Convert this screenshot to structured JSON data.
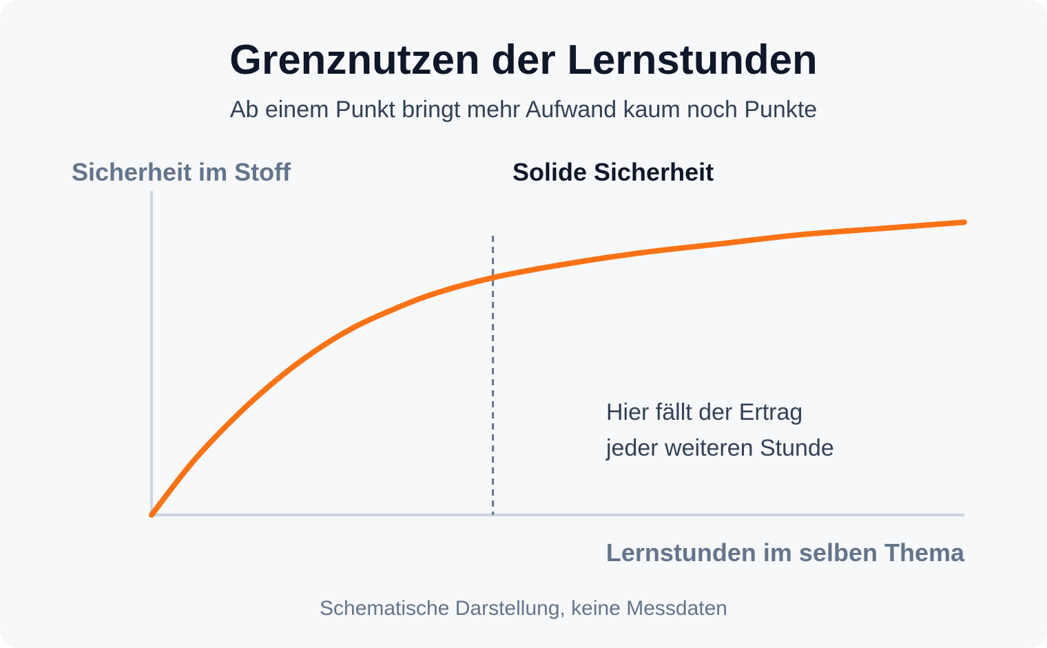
{
  "chart_data": {
    "type": "line",
    "title": "Grenznutzen der Lernstunden",
    "subtitle": "Ab einem Punkt bringt mehr Aufwand kaum noch Punkte",
    "xlabel": "Lernstunden im selben Thema",
    "ylabel": "Sicherheit im Stoff",
    "marker": {
      "label": "Solide Sicherheit",
      "x": 0.42,
      "style": "dashed-vertical"
    },
    "annotation": {
      "lines": [
        "Hier fällt der Ertrag",
        "jeder weiteren Stunde"
      ]
    },
    "footnote": "Schematische Darstellung, keine Messdaten",
    "xlim": [
      0,
      1
    ],
    "ylim": [
      0,
      1
    ],
    "ticks": false,
    "grid": false,
    "series": [
      {
        "x": [
          0,
          0.05,
          0.1,
          0.15,
          0.2,
          0.25,
          0.3,
          0.35,
          0.42,
          0.5,
          0.6,
          0.7,
          0.8,
          0.9,
          1.0
        ],
        "values": [
          0,
          0.17,
          0.31,
          0.43,
          0.53,
          0.61,
          0.67,
          0.72,
          0.77,
          0.81,
          0.85,
          0.88,
          0.91,
          0.93,
          0.95
        ]
      }
    ],
    "colors": {
      "line": "#f97316",
      "axis": "#cbd5e1",
      "marker": "#64748b"
    }
  }
}
